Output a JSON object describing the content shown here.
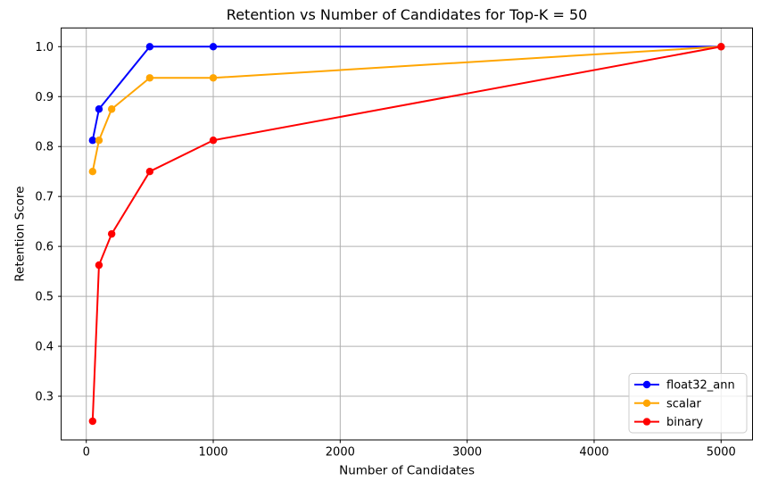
{
  "chart_data": {
    "type": "line",
    "title": "Retention vs Number of Candidates for Top-K = 50",
    "xlabel": "Number of Candidates",
    "ylabel": "Retention Score",
    "xlim": [
      -197.5,
      5247.5
    ],
    "ylim": [
      0.2125,
      1.0375
    ],
    "xticks": [
      0,
      1000,
      2000,
      3000,
      4000,
      5000
    ],
    "xtick_labels": [
      "0",
      "1000",
      "2000",
      "3000",
      "4000",
      "5000"
    ],
    "yticks": [
      0.3,
      0.4,
      0.5,
      0.6,
      0.7,
      0.8,
      0.9,
      1.0
    ],
    "ytick_labels": [
      "0.3",
      "0.4",
      "0.5",
      "0.6",
      "0.7",
      "0.8",
      "0.9",
      "1.0"
    ],
    "grid": true,
    "legend_position": "lower right",
    "series": [
      {
        "name": "float32_ann",
        "color": "#0000ff",
        "marker": "circle",
        "x": [
          50,
          100,
          500,
          1000,
          5000
        ],
        "y": [
          0.8125,
          0.875,
          1.0,
          1.0,
          1.0
        ]
      },
      {
        "name": "scalar",
        "color": "#ffa500",
        "marker": "circle",
        "x": [
          50,
          100,
          200,
          500,
          1000,
          5000
        ],
        "y": [
          0.75,
          0.8125,
          0.875,
          0.9375,
          0.9375,
          1.0
        ]
      },
      {
        "name": "binary",
        "color": "#ff0000",
        "marker": "circle",
        "x": [
          50,
          100,
          200,
          500,
          1000,
          5000
        ],
        "y": [
          0.25,
          0.5625,
          0.625,
          0.75,
          0.8125,
          1.0
        ]
      }
    ],
    "colors": {
      "grid": "#b0b0b0",
      "spine": "#000000",
      "background": "#ffffff",
      "legend_border": "#cccccc",
      "legend_background": "#ffffff"
    }
  }
}
